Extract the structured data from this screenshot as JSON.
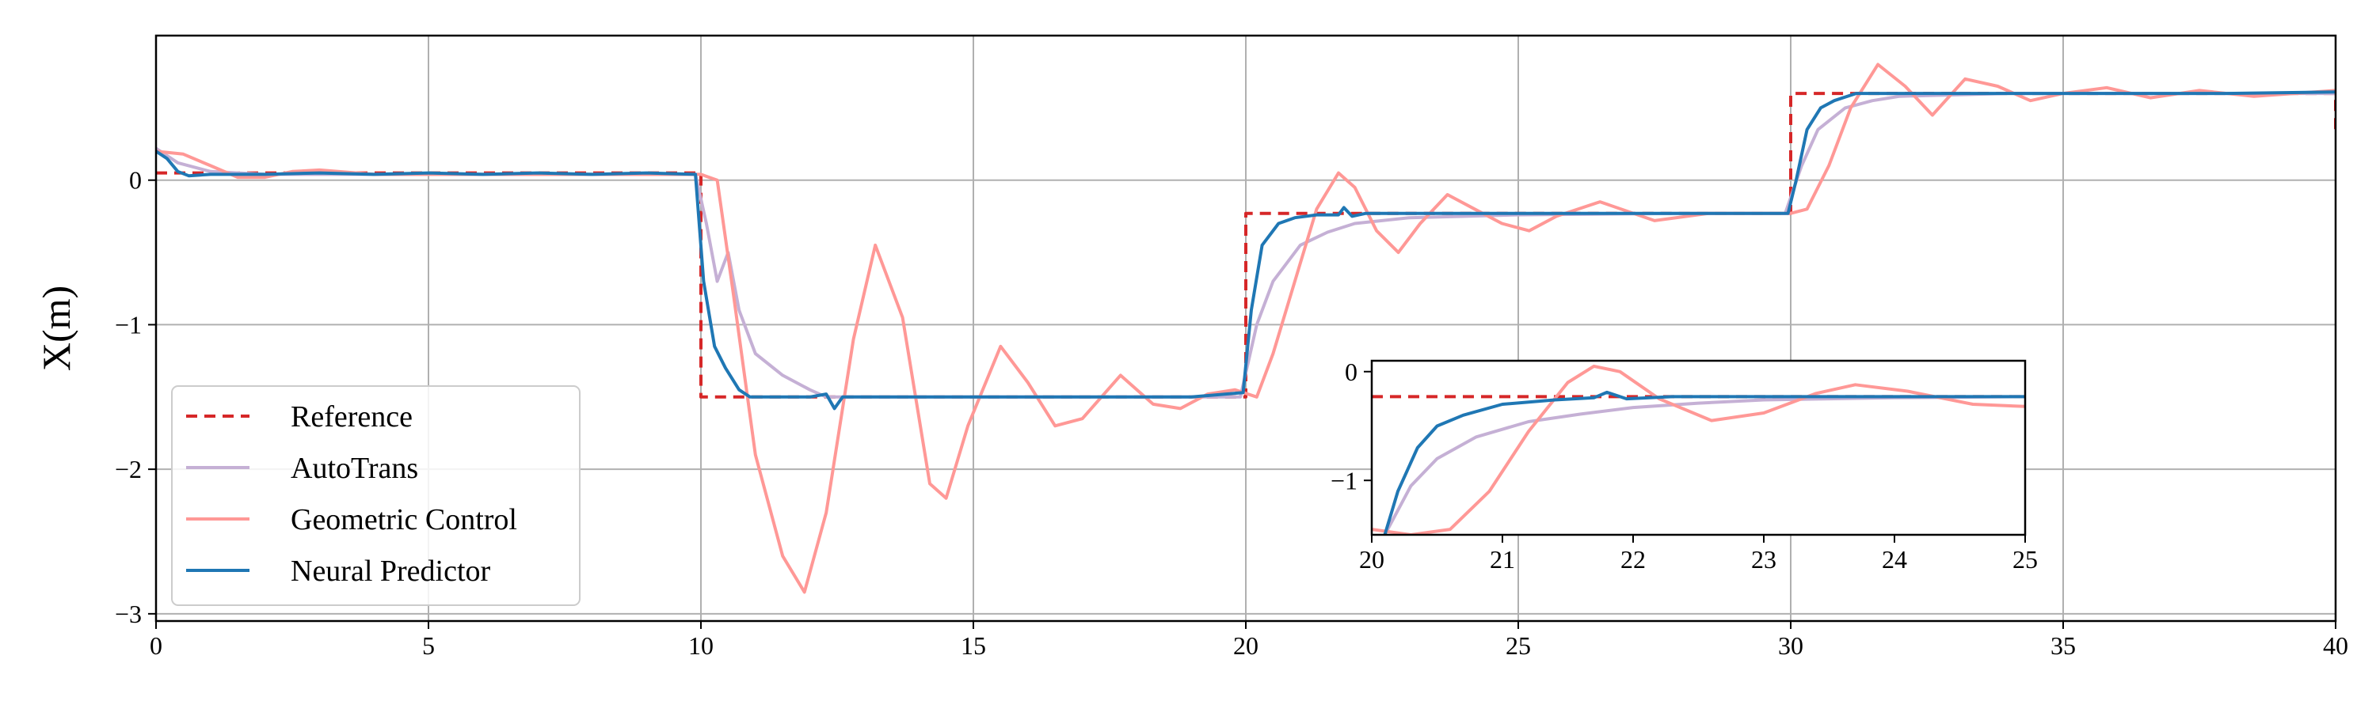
{
  "chart_data": [
    {
      "type": "line",
      "title": "",
      "xlabel": "",
      "ylabel": "X(m)",
      "xlim": [
        0,
        40
      ],
      "ylim": [
        -3.05,
        1.0
      ],
      "xticks": [
        0,
        5,
        10,
        15,
        20,
        25,
        30,
        35,
        40
      ],
      "yticks": [
        0,
        -1,
        -2,
        -3
      ],
      "ytick_labels": [
        "0",
        "−1",
        "−2",
        "−3"
      ],
      "grid": true,
      "legend_position": "lower-left",
      "colors": {
        "reference": "#d62728",
        "autotrans": "#c5b0d5",
        "geometric": "#ff9896",
        "neural": "#1f77b4"
      },
      "series": [
        {
          "name": "Reference",
          "style": "dashed",
          "color": "#d62728",
          "x": [
            0,
            10,
            10,
            20,
            20,
            30,
            30,
            40,
            40
          ],
          "y": [
            0.05,
            0.05,
            -1.5,
            -1.5,
            -0.23,
            -0.23,
            0.6,
            0.6,
            0.35
          ]
        },
        {
          "name": "AutoTrans",
          "style": "solid",
          "color": "#c5b0d5",
          "x": [
            0,
            0.4,
            1,
            2,
            4,
            6,
            8,
            9.9,
            10.1,
            10.3,
            10.5,
            10.7,
            11,
            11.5,
            12,
            12.3,
            12.6,
            13,
            15,
            18,
            19.9,
            20.2,
            20.5,
            21,
            21.5,
            22,
            23,
            25,
            28,
            29.9,
            30.2,
            30.5,
            31,
            31.5,
            32,
            34,
            37,
            40
          ],
          "y": [
            0.22,
            0.12,
            0.06,
            0.04,
            0.04,
            0.04,
            0.04,
            0.04,
            -0.3,
            -0.7,
            -0.5,
            -0.9,
            -1.2,
            -1.35,
            -1.45,
            -1.5,
            -1.5,
            -1.5,
            -1.5,
            -1.5,
            -1.5,
            -1.0,
            -0.7,
            -0.45,
            -0.36,
            -0.3,
            -0.26,
            -0.24,
            -0.23,
            -0.23,
            0.1,
            0.35,
            0.5,
            0.55,
            0.58,
            0.6,
            0.6,
            0.6
          ]
        },
        {
          "name": "Geometric Control",
          "style": "solid",
          "color": "#ff9896",
          "x": [
            0,
            0.5,
            1,
            1.5,
            2,
            2.5,
            3,
            4,
            6,
            8,
            10,
            10.3,
            10.6,
            11,
            11.5,
            11.9,
            12.3,
            12.8,
            13.2,
            13.7,
            14.2,
            14.5,
            14.9,
            15.5,
            16,
            16.5,
            17,
            17.7,
            18.3,
            18.8,
            19.3,
            19.8,
            20.2,
            20.5,
            20.9,
            21.3,
            21.7,
            22,
            22.4,
            22.8,
            23.2,
            23.7,
            24.2,
            24.7,
            25.2,
            25.7,
            26.5,
            27.5,
            28.5,
            30,
            30.3,
            30.7,
            31.1,
            31.6,
            32.1,
            32.6,
            33.2,
            33.8,
            34.4,
            35,
            35.8,
            36.6,
            37.5,
            38.5,
            40
          ],
          "y": [
            0.2,
            0.18,
            0.1,
            0.02,
            0.02,
            0.06,
            0.07,
            0.04,
            0.04,
            0.04,
            0.04,
            0.0,
            -0.8,
            -1.9,
            -2.6,
            -2.85,
            -2.3,
            -1.1,
            -0.45,
            -0.95,
            -2.1,
            -2.2,
            -1.7,
            -1.15,
            -1.4,
            -1.7,
            -1.65,
            -1.35,
            -1.55,
            -1.58,
            -1.48,
            -1.45,
            -1.5,
            -1.2,
            -0.7,
            -0.2,
            0.05,
            -0.05,
            -0.35,
            -0.5,
            -0.3,
            -0.1,
            -0.2,
            -0.3,
            -0.35,
            -0.25,
            -0.15,
            -0.28,
            -0.23,
            -0.23,
            -0.2,
            0.1,
            0.5,
            0.8,
            0.65,
            0.45,
            0.7,
            0.65,
            0.55,
            0.6,
            0.64,
            0.57,
            0.62,
            0.58,
            0.62
          ]
        },
        {
          "name": "Neural Predictor",
          "style": "solid",
          "color": "#1f77b4",
          "x": [
            0,
            0.2,
            0.4,
            0.6,
            1,
            2,
            3,
            4,
            5,
            6,
            7,
            8,
            9,
            9.9,
            10.05,
            10.25,
            10.45,
            10.7,
            10.9,
            11.2,
            12,
            12.3,
            12.45,
            12.6,
            13,
            15,
            17,
            19,
            19.95,
            20.1,
            20.3,
            20.6,
            20.9,
            21.3,
            21.7,
            21.8,
            21.95,
            22.2,
            23,
            25,
            27,
            29.95,
            30.1,
            30.3,
            30.55,
            30.8,
            31.2,
            32,
            34,
            36,
            38,
            40
          ],
          "y": [
            0.2,
            0.15,
            0.06,
            0.03,
            0.04,
            0.04,
            0.05,
            0.04,
            0.05,
            0.04,
            0.05,
            0.04,
            0.05,
            0.04,
            -0.7,
            -1.15,
            -1.3,
            -1.45,
            -1.5,
            -1.5,
            -1.5,
            -1.48,
            -1.58,
            -1.5,
            -1.5,
            -1.5,
            -1.5,
            -1.5,
            -1.47,
            -0.9,
            -0.45,
            -0.3,
            -0.26,
            -0.24,
            -0.24,
            -0.19,
            -0.25,
            -0.23,
            -0.23,
            -0.23,
            -0.23,
            -0.23,
            0.0,
            0.35,
            0.5,
            0.55,
            0.6,
            0.6,
            0.6,
            0.6,
            0.6,
            0.61
          ]
        }
      ]
    },
    {
      "type": "line",
      "title": "",
      "xlabel": "",
      "ylabel": "",
      "xlim": [
        20,
        25
      ],
      "ylim": [
        -1.5,
        0.1
      ],
      "xticks": [
        20,
        21,
        22,
        23,
        24,
        25
      ],
      "yticks": [
        0,
        -1
      ],
      "ytick_labels": [
        "0",
        "−1"
      ],
      "grid": false,
      "position": "inset",
      "series": [
        {
          "name": "Reference",
          "style": "dashed",
          "color": "#d62728",
          "x": [
            20,
            25
          ],
          "y": [
            -0.23,
            -0.23
          ]
        },
        {
          "name": "AutoTrans",
          "style": "solid",
          "color": "#c5b0d5",
          "x": [
            20.1,
            20.3,
            20.5,
            20.8,
            21.2,
            21.6,
            22,
            22.5,
            23,
            24,
            25
          ],
          "y": [
            -1.5,
            -1.05,
            -0.8,
            -0.6,
            -0.46,
            -0.39,
            -0.33,
            -0.29,
            -0.26,
            -0.24,
            -0.23
          ]
        },
        {
          "name": "Geometric Control",
          "style": "solid",
          "color": "#ff9896",
          "x": [
            20,
            20.3,
            20.6,
            20.9,
            21.2,
            21.5,
            21.7,
            21.9,
            22.2,
            22.6,
            23,
            23.4,
            23.7,
            24.1,
            24.6,
            25
          ],
          "y": [
            -1.45,
            -1.5,
            -1.45,
            -1.1,
            -0.55,
            -0.1,
            0.05,
            0.0,
            -0.25,
            -0.45,
            -0.38,
            -0.2,
            -0.12,
            -0.18,
            -0.3,
            -0.32
          ]
        },
        {
          "name": "Neural Predictor",
          "style": "solid",
          "color": "#1f77b4",
          "x": [
            20.1,
            20.2,
            20.35,
            20.5,
            20.7,
            21,
            21.4,
            21.7,
            21.8,
            21.95,
            22.3,
            23,
            24,
            25
          ],
          "y": [
            -1.5,
            -1.1,
            -0.7,
            -0.5,
            -0.4,
            -0.3,
            -0.26,
            -0.24,
            -0.19,
            -0.25,
            -0.23,
            -0.23,
            -0.23,
            -0.23
          ]
        }
      ]
    }
  ]
}
